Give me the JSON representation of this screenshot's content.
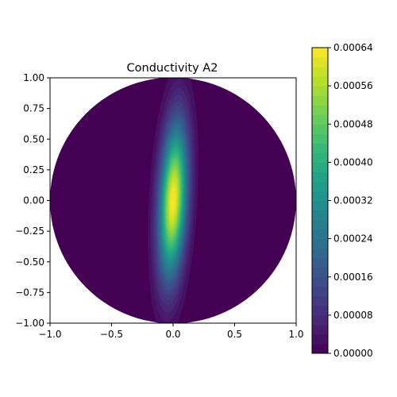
{
  "chart_data": {
    "type": "heatmap",
    "subtype": "filled-contour",
    "title": "Conductivity A2",
    "xlabel": "",
    "ylabel": "",
    "xlim": [
      -1.0,
      1.0
    ],
    "ylim": [
      -1.0,
      1.0
    ],
    "x_ticks": [
      "−1.0",
      "−0.5",
      "0.0",
      "0.5",
      "1.0"
    ],
    "y_ticks": [
      "−1.00",
      "−0.75",
      "−0.50",
      "−0.25",
      "0.00",
      "0.25",
      "0.50",
      "0.75",
      "1.00"
    ],
    "domain_shape": "disk of radius 1 centred at (0, 0)",
    "field": {
      "peak_value": 0.00064,
      "peak_location": [
        0.0,
        0.0
      ],
      "sigma_x": 0.075,
      "sigma_y": 0.42,
      "rotation_deg": 3
    },
    "colorbar": {
      "colormap": "viridis",
      "levels": 32,
      "range": [
        0.0,
        0.00064
      ],
      "tick_labels": [
        "0.00000",
        "0.00008",
        "0.00016",
        "0.00024",
        "0.00032",
        "0.00040",
        "0.00048",
        "0.00056",
        "0.00064"
      ],
      "colors": [
        "#440154",
        "#482878",
        "#3e4989",
        "#31688e",
        "#26828e",
        "#1f9e89",
        "#35b779",
        "#6ece58",
        "#b5de2b",
        "#fde725"
      ]
    },
    "grid": false,
    "legend": "none"
  }
}
